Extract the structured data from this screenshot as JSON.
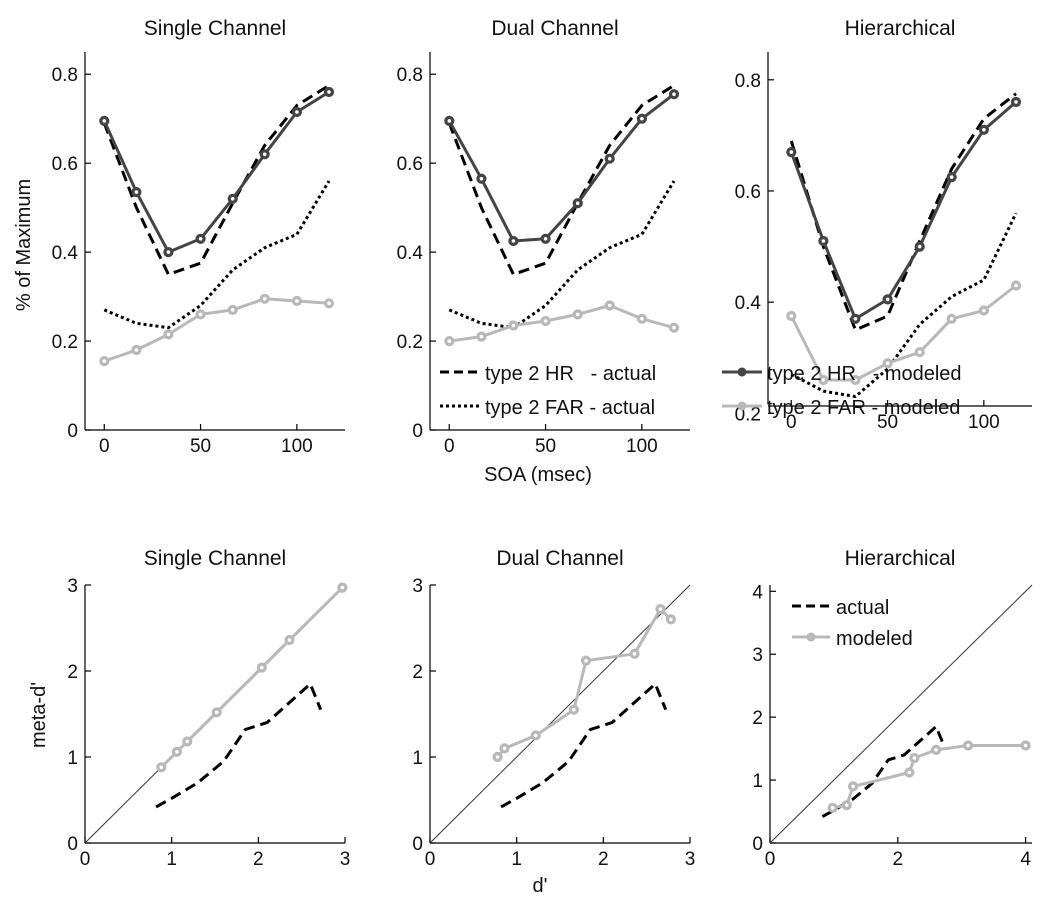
{
  "figure": {
    "top_ylabel": "% of Maximum",
    "top_xlabel": "SOA (msec)",
    "bottom_ylabel": "meta-d'",
    "bottom_xlabel": "d'"
  },
  "legend_top": {
    "hr_actual": "type 2 HR   - actual",
    "far_actual": "type 2 FAR - actual",
    "hr_modeled": "type 2 HR   - modeled",
    "far_modeled": "type 2 FAR - modeled"
  },
  "legend_bottom": {
    "actual": "actual",
    "modeled": "modeled"
  },
  "colors": {
    "hr_modeled": "#444444",
    "far_modeled": "#b8b8b8",
    "actual": "#000000",
    "identity": "#333333"
  },
  "chart_data": [
    {
      "type": "line",
      "title": "Single Channel",
      "xlim": [
        -10,
        125
      ],
      "ylim": [
        0,
        0.85
      ],
      "xticks": [
        0,
        50,
        100
      ],
      "yticks": [
        0,
        0.2,
        0.4,
        0.6,
        0.8
      ],
      "x": [
        0,
        16.7,
        33.3,
        50,
        66.7,
        83.3,
        100,
        116.7
      ],
      "series": [
        {
          "name": "type 2 HR - actual",
          "style": "dashed",
          "values": [
            0.69,
            0.5,
            0.35,
            0.375,
            0.51,
            0.64,
            0.73,
            0.775
          ]
        },
        {
          "name": "type 2 FAR - actual",
          "style": "dotted",
          "values": [
            0.27,
            0.24,
            0.23,
            0.28,
            0.36,
            0.41,
            0.44,
            0.56
          ]
        },
        {
          "name": "type 2 HR - modeled",
          "style": "solid-dark",
          "values": [
            0.695,
            0.535,
            0.4,
            0.43,
            0.52,
            0.62,
            0.715,
            0.76
          ]
        },
        {
          "name": "type 2 FAR - modeled",
          "style": "solid-light",
          "values": [
            0.155,
            0.18,
            0.215,
            0.26,
            0.27,
            0.295,
            0.29,
            0.285
          ]
        }
      ]
    },
    {
      "type": "line",
      "title": "Dual Channel",
      "xlim": [
        -10,
        125
      ],
      "ylim": [
        0,
        0.85
      ],
      "xticks": [
        0,
        50,
        100
      ],
      "yticks": [
        0,
        0.2,
        0.4,
        0.6,
        0.8
      ],
      "x": [
        0,
        16.7,
        33.3,
        50,
        66.7,
        83.3,
        100,
        116.7
      ],
      "series": [
        {
          "name": "type 2 HR - actual",
          "style": "dashed",
          "values": [
            0.69,
            0.5,
            0.35,
            0.375,
            0.51,
            0.64,
            0.73,
            0.775
          ]
        },
        {
          "name": "type 2 FAR - actual",
          "style": "dotted",
          "values": [
            0.27,
            0.24,
            0.23,
            0.28,
            0.36,
            0.41,
            0.44,
            0.56
          ]
        },
        {
          "name": "type 2 HR - modeled",
          "style": "solid-dark",
          "values": [
            0.695,
            0.565,
            0.425,
            0.43,
            0.51,
            0.61,
            0.7,
            0.755
          ]
        },
        {
          "name": "type 2 FAR - modeled",
          "style": "solid-light",
          "values": [
            0.2,
            0.21,
            0.235,
            0.245,
            0.26,
            0.28,
            0.25,
            0.23
          ]
        }
      ]
    },
    {
      "type": "line",
      "title": "Hierarchical",
      "xlim": [
        -10,
        125
      ],
      "ylim": [
        0.17,
        0.85
      ],
      "xticks": [
        0,
        50,
        100
      ],
      "yticks": [
        0.2,
        0.4,
        0.6,
        0.8
      ],
      "x": [
        0,
        16.7,
        33.3,
        50,
        66.7,
        83.3,
        100,
        116.7
      ],
      "series": [
        {
          "name": "type 2 HR - actual",
          "style": "dashed",
          "values": [
            0.69,
            0.5,
            0.35,
            0.375,
            0.51,
            0.64,
            0.73,
            0.775
          ]
        },
        {
          "name": "type 2 FAR - actual",
          "style": "dotted",
          "values": [
            0.27,
            0.24,
            0.23,
            0.28,
            0.36,
            0.41,
            0.44,
            0.56
          ]
        },
        {
          "name": "type 2 HR - modeled",
          "style": "solid-dark",
          "values": [
            0.67,
            0.51,
            0.37,
            0.405,
            0.5,
            0.625,
            0.71,
            0.76
          ]
        },
        {
          "name": "type 2 FAR - modeled",
          "style": "solid-light",
          "values": [
            0.375,
            0.26,
            0.26,
            0.29,
            0.31,
            0.37,
            0.385,
            0.43
          ]
        }
      ]
    },
    {
      "type": "line",
      "title": "Single Channel",
      "xlim": [
        0,
        3
      ],
      "ylim": [
        0,
        3
      ],
      "xticks": [
        0,
        1,
        2,
        3
      ],
      "yticks": [
        0,
        1,
        2,
        3
      ],
      "series": [
        {
          "name": "actual",
          "style": "dashed",
          "x": [
            0.82,
            1.0,
            1.3,
            1.6,
            1.85,
            2.1,
            2.6,
            2.72
          ],
          "y": [
            0.42,
            0.52,
            0.7,
            0.95,
            1.32,
            1.4,
            1.85,
            1.55
          ]
        },
        {
          "name": "modeled",
          "style": "solid-light",
          "x": [
            0.88,
            1.06,
            1.18,
            1.52,
            2.04,
            2.36,
            2.97
          ],
          "y": [
            0.88,
            1.06,
            1.18,
            1.52,
            2.04,
            2.36,
            2.97
          ]
        }
      ]
    },
    {
      "type": "line",
      "title": "Dual Channel",
      "xlim": [
        0,
        3
      ],
      "ylim": [
        0,
        3
      ],
      "xticks": [
        0,
        1,
        2,
        3
      ],
      "yticks": [
        0,
        1,
        2,
        3
      ],
      "series": [
        {
          "name": "actual",
          "style": "dashed",
          "x": [
            0.82,
            1.0,
            1.3,
            1.6,
            1.85,
            2.1,
            2.6,
            2.72
          ],
          "y": [
            0.42,
            0.52,
            0.7,
            0.95,
            1.32,
            1.4,
            1.85,
            1.55
          ]
        },
        {
          "name": "modeled",
          "style": "solid-light",
          "x": [
            0.78,
            0.86,
            1.22,
            1.66,
            1.8,
            2.36,
            2.66,
            2.78
          ],
          "y": [
            1.0,
            1.1,
            1.25,
            1.55,
            2.12,
            2.2,
            2.72,
            2.6
          ]
        }
      ]
    },
    {
      "type": "line",
      "title": "Hierarchical",
      "xlim": [
        0,
        4.1
      ],
      "ylim": [
        0,
        4.1
      ],
      "xticks": [
        0,
        2,
        4
      ],
      "yticks": [
        0,
        1,
        2,
        3,
        4
      ],
      "series": [
        {
          "name": "actual",
          "style": "dashed",
          "x": [
            0.82,
            1.0,
            1.3,
            1.6,
            1.85,
            2.1,
            2.6,
            2.72
          ],
          "y": [
            0.42,
            0.52,
            0.7,
            0.95,
            1.32,
            1.4,
            1.85,
            1.55
          ]
        },
        {
          "name": "modeled",
          "style": "solid-light",
          "x": [
            0.98,
            1.2,
            1.3,
            2.18,
            2.26,
            2.6,
            3.1,
            4.0
          ],
          "y": [
            0.56,
            0.6,
            0.9,
            1.12,
            1.35,
            1.48,
            1.55,
            1.55
          ]
        }
      ]
    }
  ]
}
